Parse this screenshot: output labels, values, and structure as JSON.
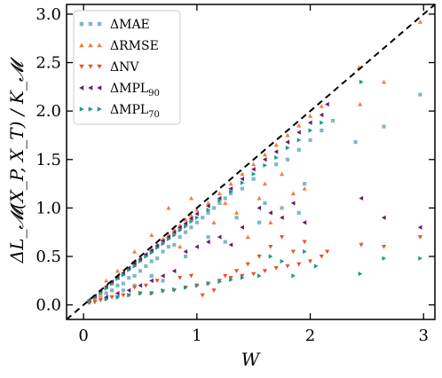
{
  "chart_data": {
    "type": "scatter",
    "title": "",
    "xlabel": "W",
    "ylabel": "ΔL_𝓜(X_P, X_T) / K_𝓜",
    "xlim": [
      -0.15,
      3.1
    ],
    "ylim": [
      -0.15,
      3.1
    ],
    "x_ticks": [
      0,
      1,
      2,
      3
    ],
    "y_ticks": [
      0.0,
      0.5,
      1.0,
      1.5,
      2.0,
      2.5,
      3.0
    ],
    "x_tick_labels": [
      "0",
      "1",
      "2",
      "3"
    ],
    "y_tick_labels": [
      "0.0",
      "0.5",
      "1.0",
      "1.5",
      "2.0",
      "2.5",
      "3.0"
    ],
    "grid": false,
    "legend_position": "top-left",
    "reference_line": {
      "style": "dashed",
      "slope": 1,
      "intercept": 0,
      "color": "#000000"
    },
    "series": [
      {
        "name": "ΔMAE",
        "legend_main": "ΔMAE",
        "legend_sub": "",
        "marker": "square",
        "color": "#7fb8c4",
        "points": [
          [
            0.05,
            0.03
          ],
          [
            0.1,
            0.06
          ],
          [
            0.15,
            0.08
          ],
          [
            0.2,
            0.12
          ],
          [
            0.25,
            0.15
          ],
          [
            0.3,
            0.2
          ],
          [
            0.35,
            0.22
          ],
          [
            0.4,
            0.28
          ],
          [
            0.45,
            0.3
          ],
          [
            0.5,
            0.35
          ],
          [
            0.55,
            0.4
          ],
          [
            0.6,
            0.45
          ],
          [
            0.65,
            0.48
          ],
          [
            0.7,
            0.55
          ],
          [
            0.75,
            0.6
          ],
          [
            0.8,
            0.62
          ],
          [
            0.85,
            0.7
          ],
          [
            0.9,
            0.75
          ],
          [
            0.95,
            0.8
          ],
          [
            1.0,
            0.85
          ],
          [
            1.05,
            0.9
          ],
          [
            1.1,
            0.95
          ],
          [
            1.15,
            1.0
          ],
          [
            1.2,
            1.05
          ],
          [
            1.25,
            1.1
          ],
          [
            1.3,
            1.15
          ],
          [
            1.35,
            0.9
          ],
          [
            1.4,
            1.2
          ],
          [
            1.5,
            1.3
          ],
          [
            1.6,
            1.05
          ],
          [
            1.7,
            1.45
          ],
          [
            1.8,
            1.5
          ],
          [
            1.9,
            1.6
          ],
          [
            2.0,
            1.7
          ],
          [
            2.1,
            1.8
          ],
          [
            2.2,
            1.9
          ],
          [
            2.4,
            1.68
          ],
          [
            2.65,
            1.84
          ],
          [
            2.97,
            2.17
          ],
          [
            1.9,
            0.95
          ],
          [
            1.95,
            1.25
          ],
          [
            1.75,
            1.0
          ],
          [
            1.55,
            0.85
          ],
          [
            0.6,
            0.3
          ],
          [
            0.7,
            0.25
          ],
          [
            0.9,
            0.5
          ],
          [
            1.1,
            0.7
          ],
          [
            1.25,
            0.65
          ],
          [
            0.35,
            0.15
          ],
          [
            0.45,
            0.2
          ]
        ]
      },
      {
        "name": "ΔRMSE",
        "legend_main": "ΔRMSE",
        "legend_sub": "",
        "marker": "triangle-up",
        "color": "#f08040",
        "points": [
          [
            0.05,
            0.04
          ],
          [
            0.1,
            0.08
          ],
          [
            0.15,
            0.12
          ],
          [
            0.2,
            0.18
          ],
          [
            0.25,
            0.22
          ],
          [
            0.3,
            0.28
          ],
          [
            0.35,
            0.32
          ],
          [
            0.4,
            0.38
          ],
          [
            0.45,
            0.42
          ],
          [
            0.5,
            0.48
          ],
          [
            0.55,
            0.52
          ],
          [
            0.6,
            0.57
          ],
          [
            0.65,
            0.62
          ],
          [
            0.7,
            0.68
          ],
          [
            0.75,
            0.72
          ],
          [
            0.8,
            0.78
          ],
          [
            0.85,
            0.82
          ],
          [
            0.9,
            0.88
          ],
          [
            0.95,
            0.92
          ],
          [
            1.0,
            0.98
          ],
          [
            1.1,
            1.05
          ],
          [
            1.2,
            1.15
          ],
          [
            1.3,
            1.25
          ],
          [
            1.4,
            1.35
          ],
          [
            1.5,
            1.45
          ],
          [
            1.6,
            1.55
          ],
          [
            1.7,
            1.65
          ],
          [
            1.8,
            1.75
          ],
          [
            1.9,
            1.85
          ],
          [
            2.0,
            1.95
          ],
          [
            2.1,
            2.05
          ],
          [
            2.43,
            2.45
          ],
          [
            2.65,
            2.3
          ],
          [
            2.97,
            2.92
          ],
          [
            2.44,
            2.07
          ],
          [
            1.55,
            1.1
          ],
          [
            1.6,
            1.25
          ],
          [
            1.75,
            1.35
          ],
          [
            1.85,
            1.15
          ],
          [
            1.95,
            1.2
          ],
          [
            0.75,
            1.0
          ],
          [
            0.95,
            1.1
          ],
          [
            1.25,
            1.05
          ],
          [
            1.35,
            0.95
          ],
          [
            0.6,
            0.72
          ],
          [
            0.45,
            0.55
          ],
          [
            0.3,
            0.35
          ],
          [
            0.2,
            0.25
          ],
          [
            1.65,
            0.85
          ],
          [
            1.45,
            0.7
          ],
          [
            1.15,
            0.85
          ],
          [
            0.85,
            0.6
          ]
        ]
      },
      {
        "name": "ΔNV",
        "legend_main": "ΔNV",
        "legend_sub": "",
        "marker": "triangle-down",
        "color": "#e4532c",
        "points": [
          [
            0.05,
            0.02
          ],
          [
            0.1,
            0.03
          ],
          [
            0.15,
            0.05
          ],
          [
            0.2,
            0.06
          ],
          [
            0.25,
            0.08
          ],
          [
            0.3,
            0.08
          ],
          [
            0.35,
            0.1
          ],
          [
            0.4,
            0.1
          ],
          [
            0.5,
            0.12
          ],
          [
            0.6,
            0.12
          ],
          [
            0.7,
            0.14
          ],
          [
            0.8,
            0.15
          ],
          [
            0.9,
            0.18
          ],
          [
            1.0,
            0.2
          ],
          [
            1.1,
            0.22
          ],
          [
            1.2,
            0.25
          ],
          [
            1.3,
            0.28
          ],
          [
            1.4,
            0.3
          ],
          [
            1.5,
            0.32
          ],
          [
            1.6,
            0.35
          ],
          [
            1.7,
            0.38
          ],
          [
            1.8,
            0.4
          ],
          [
            1.9,
            0.42
          ],
          [
            2.0,
            0.45
          ],
          [
            2.1,
            0.5
          ],
          [
            2.15,
            0.55
          ],
          [
            2.45,
            0.62
          ],
          [
            2.65,
            0.6
          ],
          [
            2.97,
            0.7
          ],
          [
            1.55,
            0.5
          ],
          [
            1.65,
            0.6
          ],
          [
            1.75,
            0.7
          ],
          [
            1.85,
            0.55
          ],
          [
            1.95,
            0.65
          ],
          [
            1.45,
            0.42
          ],
          [
            1.35,
            0.35
          ],
          [
            1.25,
            0.3
          ],
          [
            0.95,
            0.3
          ],
          [
            0.85,
            0.28
          ],
          [
            0.65,
            0.25
          ],
          [
            0.55,
            0.2
          ],
          [
            0.45,
            0.18
          ],
          [
            1.15,
            0.15
          ],
          [
            1.05,
            0.1
          ]
        ]
      },
      {
        "name": "ΔMPL",
        "legend_main": "ΔMPL",
        "legend_sub": "90",
        "marker": "triangle-left",
        "color": "#6b1a6e",
        "points": [
          [
            0.05,
            0.05
          ],
          [
            0.1,
            0.09
          ],
          [
            0.15,
            0.14
          ],
          [
            0.2,
            0.19
          ],
          [
            0.25,
            0.24
          ],
          [
            0.3,
            0.28
          ],
          [
            0.35,
            0.33
          ],
          [
            0.4,
            0.38
          ],
          [
            0.45,
            0.43
          ],
          [
            0.5,
            0.47
          ],
          [
            0.55,
            0.52
          ],
          [
            0.6,
            0.56
          ],
          [
            0.65,
            0.61
          ],
          [
            0.7,
            0.66
          ],
          [
            0.75,
            0.7
          ],
          [
            0.8,
            0.75
          ],
          [
            0.85,
            0.8
          ],
          [
            0.9,
            0.84
          ],
          [
            0.95,
            0.89
          ],
          [
            1.0,
            0.94
          ],
          [
            1.1,
            1.02
          ],
          [
            1.2,
            1.1
          ],
          [
            1.3,
            1.2
          ],
          [
            1.4,
            1.3
          ],
          [
            1.5,
            1.4
          ],
          [
            1.6,
            1.5
          ],
          [
            1.7,
            1.58
          ],
          [
            1.8,
            1.68
          ],
          [
            1.9,
            1.78
          ],
          [
            2.0,
            1.88
          ],
          [
            2.1,
            1.96
          ],
          [
            2.15,
            2.07
          ],
          [
            2.45,
            1.1
          ],
          [
            2.65,
            0.9
          ],
          [
            2.97,
            0.8
          ],
          [
            1.55,
            1.0
          ],
          [
            1.65,
            0.95
          ],
          [
            1.75,
            0.9
          ],
          [
            1.85,
            1.05
          ],
          [
            1.95,
            0.85
          ],
          [
            0.5,
            0.2
          ],
          [
            0.6,
            0.25
          ],
          [
            0.7,
            0.3
          ],
          [
            0.8,
            0.35
          ],
          [
            0.9,
            0.55
          ],
          [
            1.0,
            0.6
          ],
          [
            1.1,
            0.65
          ],
          [
            1.2,
            0.7
          ],
          [
            1.3,
            0.62
          ],
          [
            1.4,
            0.8
          ],
          [
            0.3,
            0.12
          ],
          [
            0.4,
            0.15
          ],
          [
            0.2,
            0.08
          ]
        ]
      },
      {
        "name": "ΔMPL",
        "legend_main": "ΔMPL",
        "legend_sub": "70",
        "marker": "triangle-right",
        "color": "#1a9a8c",
        "points": [
          [
            0.05,
            0.04
          ],
          [
            0.1,
            0.08
          ],
          [
            0.15,
            0.13
          ],
          [
            0.2,
            0.17
          ],
          [
            0.25,
            0.22
          ],
          [
            0.3,
            0.27
          ],
          [
            0.35,
            0.31
          ],
          [
            0.4,
            0.36
          ],
          [
            0.45,
            0.4
          ],
          [
            0.5,
            0.45
          ],
          [
            0.55,
            0.5
          ],
          [
            0.6,
            0.54
          ],
          [
            0.65,
            0.59
          ],
          [
            0.7,
            0.63
          ],
          [
            0.75,
            0.68
          ],
          [
            0.8,
            0.72
          ],
          [
            0.85,
            0.77
          ],
          [
            0.9,
            0.81
          ],
          [
            0.95,
            0.86
          ],
          [
            1.0,
            0.9
          ],
          [
            1.1,
            0.98
          ],
          [
            1.2,
            1.08
          ],
          [
            1.3,
            1.17
          ],
          [
            1.4,
            1.26
          ],
          [
            1.5,
            1.35
          ],
          [
            1.6,
            1.44
          ],
          [
            1.7,
            1.52
          ],
          [
            1.8,
            1.62
          ],
          [
            1.9,
            1.7
          ],
          [
            2.0,
            1.8
          ],
          [
            2.1,
            1.88
          ],
          [
            2.45,
            2.3
          ],
          [
            2.65,
            0.48
          ],
          [
            2.97,
            0.48
          ],
          [
            2.44,
            0.32
          ],
          [
            1.55,
            0.3
          ],
          [
            1.65,
            0.5
          ],
          [
            1.75,
            0.45
          ],
          [
            1.85,
            0.3
          ],
          [
            1.95,
            0.55
          ],
          [
            2.05,
            0.4
          ],
          [
            0.4,
            0.1
          ],
          [
            0.5,
            0.12
          ],
          [
            0.6,
            0.12
          ],
          [
            0.7,
            0.15
          ],
          [
            0.8,
            0.16
          ],
          [
            0.9,
            0.18
          ],
          [
            1.0,
            0.2
          ],
          [
            1.1,
            0.22
          ],
          [
            1.2,
            0.24
          ],
          [
            1.3,
            0.26
          ],
          [
            1.4,
            0.28
          ],
          [
            0.3,
            0.08
          ],
          [
            0.2,
            0.06
          ]
        ]
      }
    ]
  }
}
